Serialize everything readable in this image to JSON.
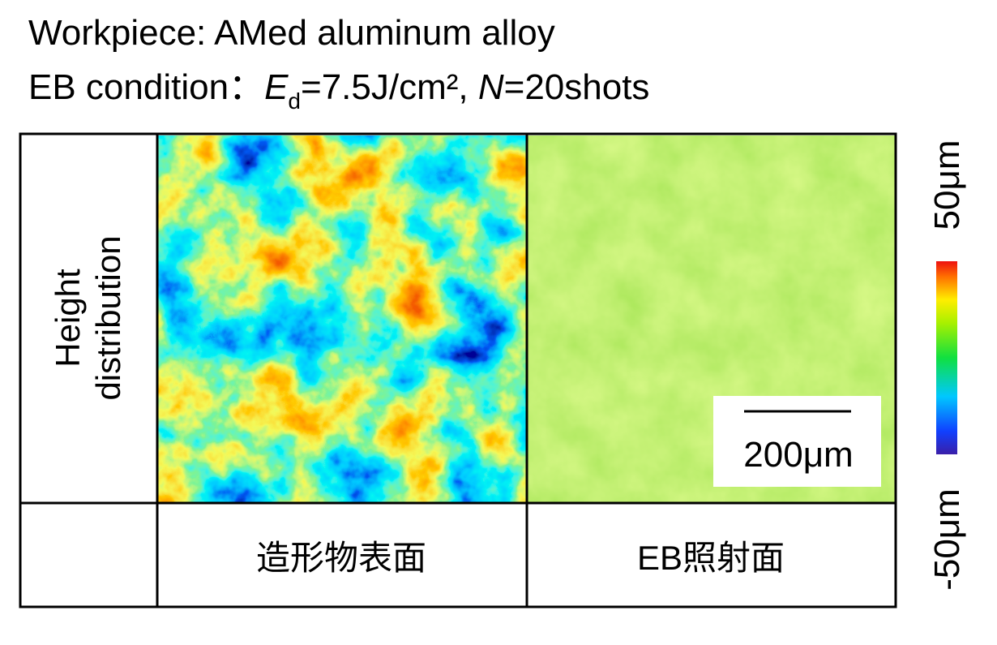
{
  "header": {
    "line1": "Workpiece: AMed aluminum alloy",
    "line2": {
      "prefix": "EB condition：",
      "energy_symbol": "E",
      "energy_subscript": "d",
      "energy_value": "=7.5J/cm², ",
      "shots_symbol": "N",
      "shots_value": "=20shots"
    }
  },
  "table": {
    "row_label": [
      "Height",
      "distribution"
    ],
    "columns": [
      "造形物表面",
      "EB照射面"
    ]
  },
  "scale_bar": "200μm",
  "colorbar": {
    "max_label": "50μm",
    "min_label": "-50μm"
  }
}
